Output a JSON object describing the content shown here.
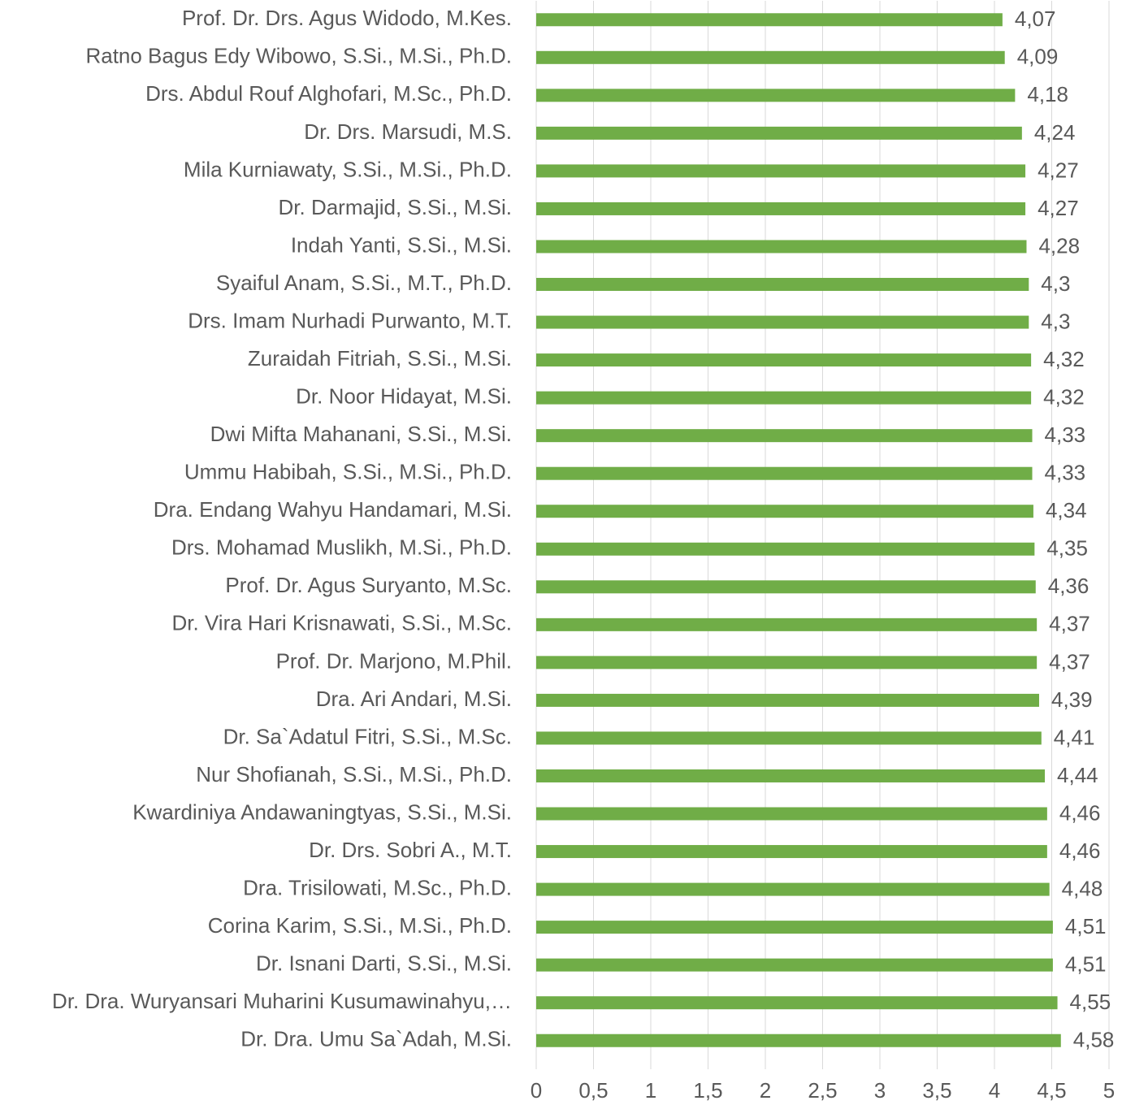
{
  "chart_data": {
    "type": "barh",
    "categories": [
      "Prof. Dr. Drs. Agus Widodo, M.Kes.",
      "Ratno Bagus Edy Wibowo, S.Si., M.Si., Ph.D.",
      "Drs. Abdul Rouf Alghofari, M.Sc., Ph.D.",
      "Dr. Drs. Marsudi, M.S.",
      "Mila Kurniawaty, S.Si., M.Si., Ph.D.",
      "Dr. Darmajid, S.Si., M.Si.",
      "Indah Yanti, S.Si., M.Si.",
      "Syaiful Anam, S.Si., M.T., Ph.D.",
      "Drs. Imam Nurhadi Purwanto, M.T.",
      "Zuraidah Fitriah, S.Si., M.Si.",
      "Dr. Noor Hidayat, M.Si.",
      "Dwi Mifta Mahanani, S.Si., M.Si.",
      "Ummu Habibah, S.Si., M.Si., Ph.D.",
      "Dra. Endang Wahyu Handamari, M.Si.",
      "Drs. Mohamad Muslikh, M.Si., Ph.D.",
      "Prof. Dr. Agus Suryanto, M.Sc.",
      "Dr. Vira Hari Krisnawati, S.Si., M.Sc.",
      "Prof. Dr. Marjono, M.Phil.",
      "Dra. Ari Andari, M.Si.",
      "Dr. Sa`Adatul Fitri, S.Si., M.Sc.",
      "Nur Shofianah, S.Si., M.Si., Ph.D.",
      "Kwardiniya Andawaningtyas, S.Si., M.Si.",
      "Dr. Drs. Sobri A., M.T.",
      "Dra. Trisilowati, M.Sc., Ph.D.",
      "Corina Karim, S.Si., M.Si., Ph.D.",
      "Dr. Isnani Darti, S.Si., M.Si.",
      "Dr. Dra. Wuryansari  Muharini Kusumawinahyu,…",
      "Dr. Dra. Umu Sa`Adah, M.Si."
    ],
    "values": [
      4.07,
      4.09,
      4.18,
      4.24,
      4.27,
      4.27,
      4.28,
      4.3,
      4.3,
      4.32,
      4.32,
      4.33,
      4.33,
      4.34,
      4.35,
      4.36,
      4.37,
      4.37,
      4.39,
      4.41,
      4.44,
      4.46,
      4.46,
      4.48,
      4.51,
      4.51,
      4.55,
      4.58
    ],
    "value_labels": [
      "4,07",
      "4,09",
      "4,18",
      "4,24",
      "4,27",
      "4,27",
      "4,28",
      "4,3",
      "4,3",
      "4,32",
      "4,32",
      "4,33",
      "4,33",
      "4,34",
      "4,35",
      "4,36",
      "4,37",
      "4,37",
      "4,39",
      "4,41",
      "4,44",
      "4,46",
      "4,46",
      "4,48",
      "4,51",
      "4,51",
      "4,55",
      "4,58"
    ],
    "color": "#70ad47",
    "xlim": [
      0,
      5
    ],
    "xticks": [
      0,
      {
        "value": 0.5,
        "label": "0,5"
      },
      1,
      {
        "value": 1.5,
        "label": "1,5"
      },
      2,
      {
        "value": 2.5,
        "label": "2,5"
      },
      3,
      {
        "value": 3.5,
        "label": "3,5"
      },
      4,
      {
        "value": 4.5,
        "label": "4,5"
      },
      5
    ],
    "grid": true
  }
}
